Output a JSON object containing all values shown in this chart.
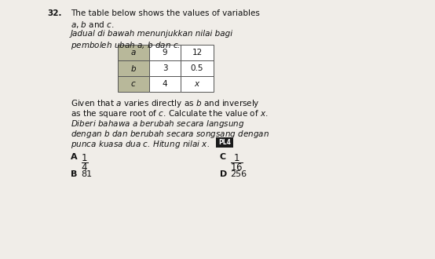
{
  "question_number": "32.",
  "line1_en": "The table below shows the values of variables",
  "line2_en": "$a$, $b$ and $c$.",
  "line1_ms": "Jadual di bawah menunjukkan nilai bagi",
  "line2_ms": "pemboleh ubah $a$, $b$ dan $c$.",
  "table_rows": [
    [
      "$a$",
      "9",
      "12"
    ],
    [
      "$b$",
      "3",
      "0.5"
    ],
    [
      "$c$",
      "4",
      "$x$"
    ]
  ],
  "body_en_1": "Given that $a$ varies directly as $b$ and inversely",
  "body_en_2": "as the square root of $c$. Calculate the value of $x$.",
  "body_ms_1": "Diberi bahawa $a$ berubah secara langsung",
  "body_ms_2": "dengan $b$ dan berubah secara songsang dengan",
  "body_ms_3": "punca kuasa dua $c$. Hitung nilai $x$.",
  "pl4_label": "PL4",
  "opt_A_label": "A",
  "opt_A_val": "$\\dfrac{1}{4}$",
  "opt_B_label": "B",
  "opt_B_val": "81",
  "opt_C_label": "C",
  "opt_C_val": "$\\dfrac{1}{16}$",
  "opt_D_label": "D",
  "opt_D_val": "256",
  "header_cell_color": "#b8b89a",
  "data_cell_color": "#ffffff",
  "border_color": "#555555",
  "pl4_bg": "#1a1a1a",
  "bg_color": "#f0ede8",
  "text_color": "#111111"
}
